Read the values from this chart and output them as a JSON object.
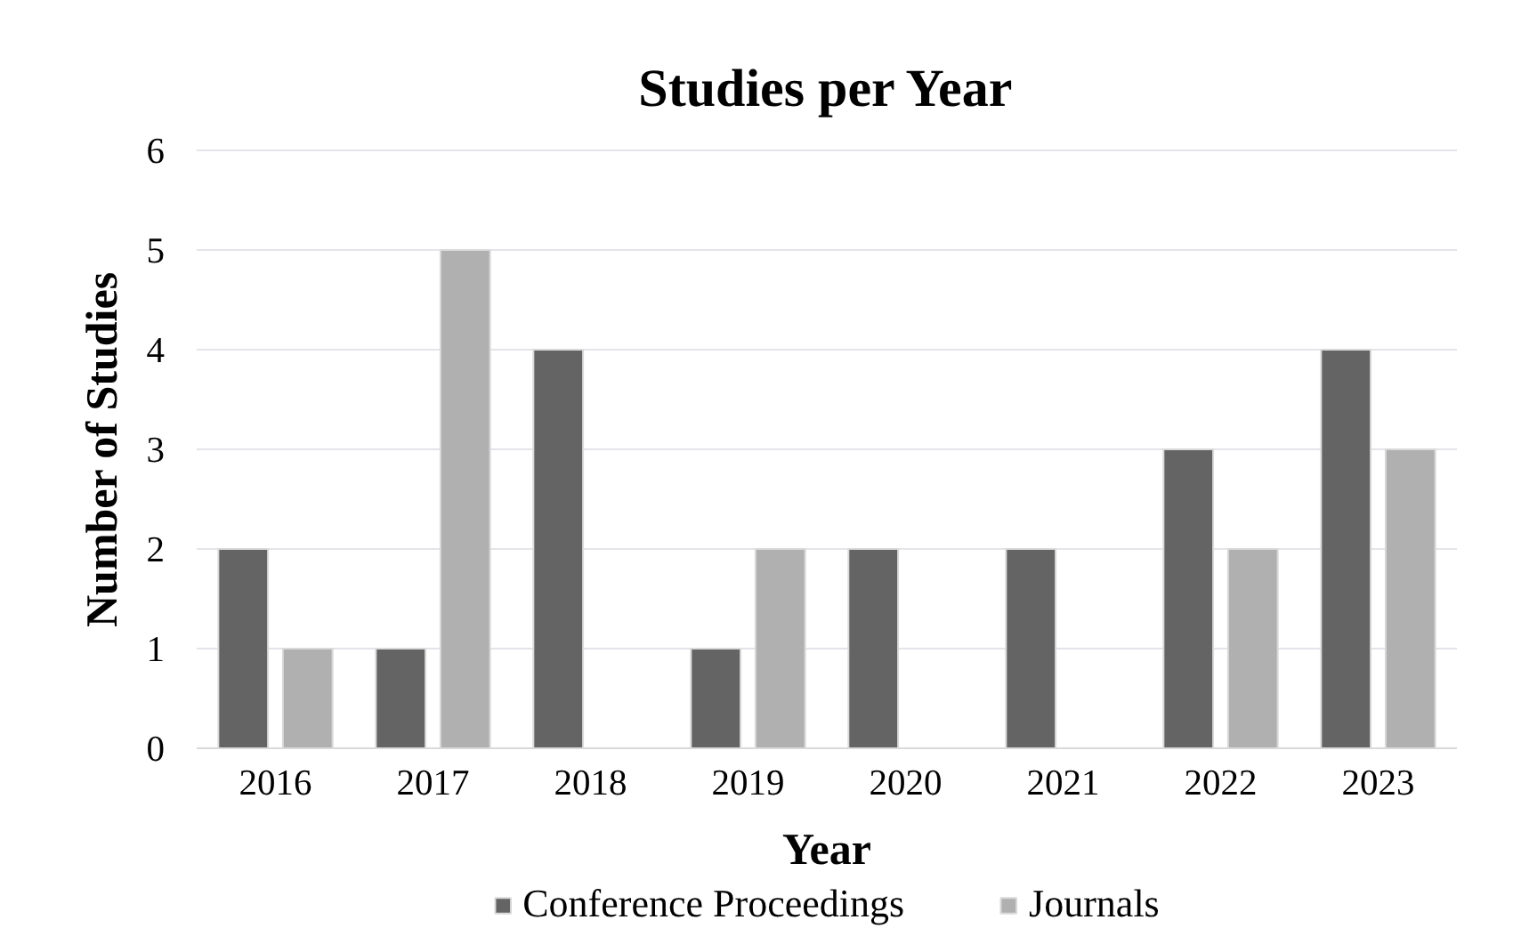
{
  "chart_data": {
    "type": "bar",
    "title": "Studies per Year",
    "xlabel": "Year",
    "ylabel": "Number of Studies",
    "categories": [
      "2016",
      "2017",
      "2018",
      "2019",
      "2020",
      "2021",
      "2022",
      "2023"
    ],
    "series": [
      {
        "name": "Conference Proceedings",
        "color": "#646464",
        "values": [
          2,
          1,
          4,
          1,
          2,
          2,
          3,
          4
        ]
      },
      {
        "name": "Journals",
        "color": "#b0b0b0",
        "values": [
          1,
          5,
          null,
          2,
          null,
          null,
          2,
          3
        ]
      }
    ],
    "ylim": [
      0,
      6
    ],
    "yticks": [
      0,
      1,
      2,
      3,
      4,
      5,
      6
    ],
    "grid": "y",
    "legend": "bottom"
  }
}
